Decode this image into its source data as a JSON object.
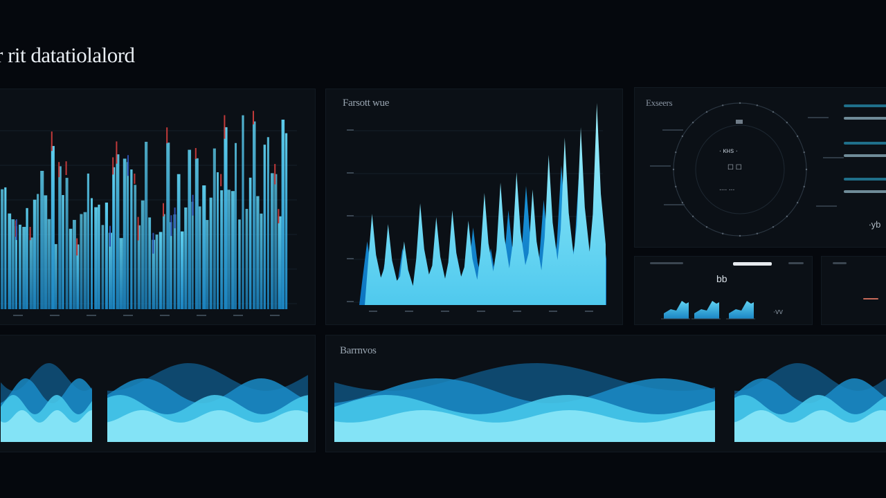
{
  "header": {
    "title": "r rit datatiolalord"
  },
  "panels": {
    "main_bars": {
      "label": ""
    },
    "area_bars": {
      "label": "Farsott wue"
    },
    "radial": {
      "label": "Exseers",
      "center_lines": [
        "∙ ᴋʜѕ ∙",
        "☐  ☐",
        "∙∙∙∙ ∙∙∙"
      ],
      "side_text": "∙yb"
    },
    "mini": {
      "value": "bb",
      "side_text": "∙vv"
    },
    "waves_label": "Barrnvos"
  },
  "colors": {
    "background": "#05080d",
    "panel": "#0b1016",
    "cyan_light": "#86e8f6",
    "cyan_mid": "#2ab7e6",
    "blue_deep": "#0e6aa8",
    "red_accent": "#c23a3a",
    "text_muted": "#9aa6b2"
  }
}
